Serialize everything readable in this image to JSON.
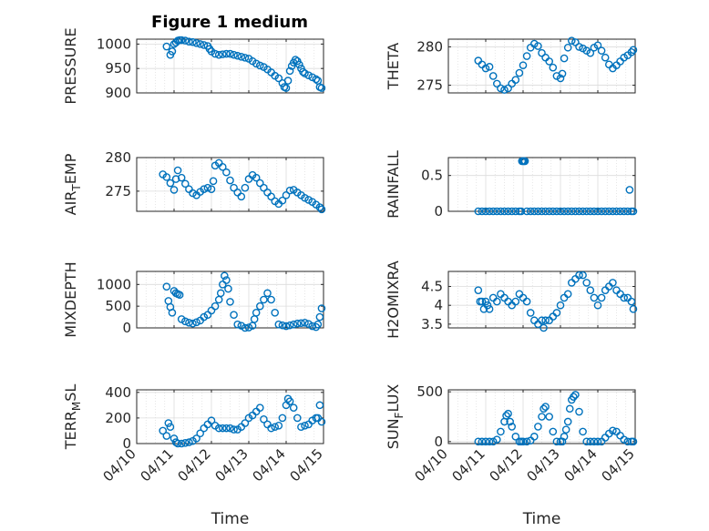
{
  "figure_title": "Figure 1 medium",
  "x_axis": {
    "label": "Time",
    "tick_labels": [
      "04/10",
      "04/11",
      "04/12",
      "04/13",
      "04/14",
      "04/15"
    ],
    "range": [
      0,
      5
    ]
  },
  "colors": {
    "marker": "#0072BD",
    "axis": "#262626",
    "grid": "#dcdcdc"
  },
  "chart_data": [
    {
      "type": "scatter",
      "ylabel": "PRESSURE",
      "ylim": [
        900,
        1010
      ],
      "yticks": [
        900,
        950,
        1000
      ],
      "x": [
        0.8,
        0.9,
        0.95,
        1.0,
        1.05,
        1.1,
        1.15,
        1.2,
        1.3,
        1.4,
        1.5,
        1.6,
        1.7,
        1.8,
        1.9,
        1.95,
        2.0,
        2.1,
        2.2,
        2.3,
        2.4,
        2.5,
        2.6,
        2.7,
        2.8,
        2.9,
        3.0,
        3.1,
        3.2,
        3.3,
        3.4,
        3.5,
        3.6,
        3.7,
        3.8,
        3.9,
        3.95,
        4.0,
        4.05,
        4.1,
        4.15,
        4.2,
        4.25,
        4.3,
        4.35,
        4.4,
        4.45,
        4.5,
        4.6,
        4.7,
        4.8,
        4.85,
        4.9,
        4.95
      ],
      "y": [
        995,
        978,
        985,
        1000,
        1003,
        1007,
        1008,
        1008,
        1007,
        1005,
        1004,
        1002,
        1000,
        998,
        996,
        990,
        985,
        980,
        978,
        979,
        980,
        980,
        978,
        976,
        974,
        972,
        970,
        965,
        960,
        956,
        953,
        948,
        942,
        935,
        930,
        920,
        912,
        910,
        925,
        945,
        955,
        962,
        968,
        965,
        958,
        950,
        943,
        940,
        936,
        932,
        928,
        925,
        912,
        910
      ]
    },
    {
      "type": "scatter",
      "ylabel": "THETA",
      "ylim": [
        274,
        281
      ],
      "yticks": [
        275,
        280
      ],
      "x": [
        0.8,
        0.9,
        1.0,
        1.1,
        1.2,
        1.3,
        1.4,
        1.5,
        1.6,
        1.7,
        1.8,
        1.9,
        2.0,
        2.1,
        2.2,
        2.3,
        2.4,
        2.5,
        2.6,
        2.7,
        2.8,
        2.9,
        3.0,
        3.05,
        3.1,
        3.2,
        3.3,
        3.4,
        3.5,
        3.6,
        3.7,
        3.8,
        3.9,
        4.0,
        4.1,
        4.2,
        4.3,
        4.4,
        4.5,
        4.6,
        4.7,
        4.8,
        4.9,
        4.95
      ],
      "y": [
        278.2,
        277.7,
        277.2,
        277.4,
        276.2,
        275.2,
        274.6,
        274.4,
        274.6,
        275.2,
        275.7,
        276.6,
        277.6,
        278.8,
        279.9,
        280.4,
        280.1,
        279.2,
        278.6,
        278.1,
        277.3,
        276.2,
        275.9,
        276.5,
        278.5,
        279.9,
        280.8,
        280.6,
        280.0,
        279.8,
        279.5,
        279.2,
        279.9,
        280.2,
        279.5,
        278.6,
        277.7,
        277.2,
        277.6,
        278.1,
        278.6,
        278.9,
        279.3,
        279.6
      ]
    },
    {
      "type": "scatter",
      "ylabel": "AIR_TEMP",
      "ylim": [
        272,
        280
      ],
      "yticks": [
        275,
        280
      ],
      "x": [
        0.7,
        0.8,
        0.9,
        1.0,
        1.05,
        1.1,
        1.2,
        1.3,
        1.4,
        1.5,
        1.6,
        1.7,
        1.8,
        1.9,
        2.0,
        2.05,
        2.1,
        2.2,
        2.3,
        2.4,
        2.5,
        2.6,
        2.7,
        2.8,
        2.9,
        3.0,
        3.1,
        3.2,
        3.3,
        3.4,
        3.5,
        3.6,
        3.7,
        3.8,
        3.9,
        4.0,
        4.1,
        4.2,
        4.3,
        4.4,
        4.5,
        4.6,
        4.7,
        4.8,
        4.9,
        4.95
      ],
      "y": [
        277.5,
        277.1,
        276.2,
        275.2,
        276.8,
        278.1,
        277.0,
        276.1,
        275.3,
        274.7,
        274.4,
        274.9,
        275.3,
        275.5,
        275.3,
        276.5,
        278.8,
        279.2,
        278.6,
        277.8,
        276.6,
        275.5,
        274.8,
        274.2,
        275.5,
        276.8,
        277.4,
        277.0,
        276.2,
        275.5,
        274.8,
        274.2,
        273.5,
        273.1,
        273.6,
        274.4,
        275.1,
        275.2,
        274.8,
        274.4,
        274.0,
        273.7,
        273.4,
        273.0,
        272.6,
        272.3
      ]
    },
    {
      "type": "scatter",
      "ylabel": "RAINFALL",
      "ylim": [
        0,
        0.75
      ],
      "yticks": [
        0,
        0.5
      ],
      "x": [
        0.8,
        0.9,
        1.0,
        1.1,
        1.2,
        1.3,
        1.4,
        1.5,
        1.6,
        1.7,
        1.8,
        1.9,
        1.95,
        1.97,
        2.0,
        2.03,
        2.05,
        2.1,
        2.2,
        2.3,
        2.4,
        2.5,
        2.6,
        2.7,
        2.8,
        2.9,
        3.0,
        3.1,
        3.2,
        3.3,
        3.4,
        3.5,
        3.6,
        3.7,
        3.8,
        3.9,
        4.0,
        4.1,
        4.2,
        4.3,
        4.4,
        4.5,
        4.6,
        4.7,
        4.8,
        4.85,
        4.9,
        4.95
      ],
      "y": [
        0,
        0,
        0,
        0,
        0,
        0,
        0,
        0,
        0,
        0,
        0,
        0,
        0,
        0.7,
        0.7,
        0.7,
        0.7,
        0,
        0,
        0,
        0,
        0,
        0,
        0,
        0,
        0,
        0,
        0,
        0,
        0,
        0,
        0,
        0,
        0,
        0,
        0,
        0,
        0,
        0,
        0,
        0,
        0,
        0,
        0,
        0,
        0.3,
        0,
        0
      ]
    },
    {
      "type": "scatter",
      "ylabel": "MIXDEPTH",
      "ylim": [
        0,
        1300
      ],
      "yticks": [
        0,
        500,
        1000
      ],
      "x": [
        0.8,
        0.85,
        0.9,
        0.95,
        1.0,
        1.05,
        1.1,
        1.15,
        1.2,
        1.3,
        1.4,
        1.5,
        1.6,
        1.7,
        1.8,
        1.9,
        2.0,
        2.1,
        2.2,
        2.25,
        2.3,
        2.35,
        2.4,
        2.45,
        2.5,
        2.6,
        2.7,
        2.8,
        2.9,
        3.0,
        3.1,
        3.15,
        3.2,
        3.3,
        3.4,
        3.5,
        3.6,
        3.7,
        3.8,
        3.9,
        4.0,
        4.1,
        4.2,
        4.3,
        4.4,
        4.5,
        4.6,
        4.7,
        4.8,
        4.85,
        4.9,
        4.95
      ],
      "y": [
        950,
        620,
        480,
        350,
        850,
        800,
        780,
        760,
        200,
        150,
        120,
        100,
        130,
        170,
        250,
        300,
        400,
        500,
        650,
        800,
        1000,
        1200,
        1100,
        900,
        600,
        300,
        80,
        50,
        0,
        10,
        50,
        200,
        350,
        500,
        650,
        800,
        650,
        350,
        80,
        60,
        40,
        60,
        80,
        100,
        110,
        120,
        90,
        40,
        20,
        80,
        250,
        450
      ]
    },
    {
      "type": "scatter",
      "ylabel": "H2OMIXRA",
      "ylim": [
        3.4,
        4.9
      ],
      "yticks": [
        3.5,
        4,
        4.5
      ],
      "x": [
        0.8,
        0.85,
        0.9,
        0.95,
        1.0,
        1.05,
        1.1,
        1.2,
        1.3,
        1.4,
        1.5,
        1.6,
        1.7,
        1.8,
        1.9,
        2.0,
        2.1,
        2.2,
        2.3,
        2.4,
        2.5,
        2.55,
        2.6,
        2.7,
        2.8,
        2.9,
        3.0,
        3.1,
        3.2,
        3.3,
        3.4,
        3.5,
        3.6,
        3.7,
        3.8,
        3.9,
        4.0,
        4.1,
        4.2,
        4.3,
        4.4,
        4.5,
        4.6,
        4.7,
        4.8,
        4.9,
        4.95
      ],
      "y": [
        4.4,
        4.1,
        4.1,
        3.9,
        4.1,
        4.0,
        3.9,
        4.2,
        4.1,
        4.3,
        4.2,
        4.1,
        4.0,
        4.1,
        4.3,
        4.2,
        4.1,
        3.8,
        3.6,
        3.5,
        3.6,
        3.4,
        3.6,
        3.6,
        3.7,
        3.8,
        4.0,
        4.2,
        4.3,
        4.6,
        4.7,
        4.8,
        4.8,
        4.6,
        4.4,
        4.2,
        4.0,
        4.2,
        4.4,
        4.5,
        4.6,
        4.4,
        4.3,
        4.2,
        4.2,
        4.1,
        3.9
      ]
    },
    {
      "type": "scatter",
      "ylabel": "TERR_MSL",
      "ylim": [
        0,
        420
      ],
      "yticks": [
        0,
        200,
        400
      ],
      "x": [
        0.7,
        0.8,
        0.85,
        0.9,
        1.0,
        1.05,
        1.1,
        1.2,
        1.3,
        1.4,
        1.5,
        1.6,
        1.7,
        1.8,
        1.9,
        2.0,
        2.1,
        2.2,
        2.3,
        2.4,
        2.5,
        2.6,
        2.7,
        2.8,
        2.9,
        3.0,
        3.1,
        3.2,
        3.3,
        3.4,
        3.5,
        3.6,
        3.7,
        3.8,
        3.9,
        4.0,
        4.05,
        4.1,
        4.2,
        4.3,
        4.4,
        4.5,
        4.6,
        4.7,
        4.8,
        4.85,
        4.9,
        4.95
      ],
      "y": [
        100,
        60,
        160,
        130,
        40,
        10,
        0,
        0,
        5,
        10,
        20,
        40,
        80,
        120,
        150,
        180,
        140,
        120,
        120,
        120,
        120,
        110,
        110,
        130,
        160,
        200,
        220,
        250,
        280,
        190,
        150,
        120,
        130,
        140,
        200,
        300,
        350,
        330,
        280,
        200,
        130,
        140,
        150,
        180,
        200,
        200,
        300,
        170
      ]
    },
    {
      "type": "scatter",
      "ylabel": "SUN_FLUX",
      "ylim": [
        -20,
        520
      ],
      "yticks": [
        0,
        500
      ],
      "x": [
        0.8,
        0.9,
        1.0,
        1.1,
        1.2,
        1.3,
        1.4,
        1.5,
        1.55,
        1.6,
        1.65,
        1.7,
        1.8,
        1.9,
        1.95,
        2.0,
        2.1,
        2.2,
        2.3,
        2.4,
        2.5,
        2.55,
        2.6,
        2.7,
        2.8,
        2.9,
        3.0,
        3.05,
        3.1,
        3.15,
        3.2,
        3.25,
        3.3,
        3.35,
        3.4,
        3.5,
        3.6,
        3.7,
        3.8,
        3.9,
        4.0,
        4.1,
        4.2,
        4.3,
        4.4,
        4.5,
        4.6,
        4.7,
        4.8,
        4.9,
        4.95
      ],
      "y": [
        0,
        0,
        0,
        0,
        0,
        20,
        100,
        200,
        260,
        280,
        200,
        150,
        50,
        0,
        0,
        0,
        0,
        10,
        50,
        150,
        250,
        330,
        350,
        250,
        100,
        0,
        0,
        0,
        50,
        120,
        200,
        330,
        420,
        450,
        470,
        300,
        100,
        0,
        0,
        0,
        0,
        0,
        40,
        80,
        110,
        100,
        60,
        20,
        0,
        0,
        0
      ]
    }
  ]
}
